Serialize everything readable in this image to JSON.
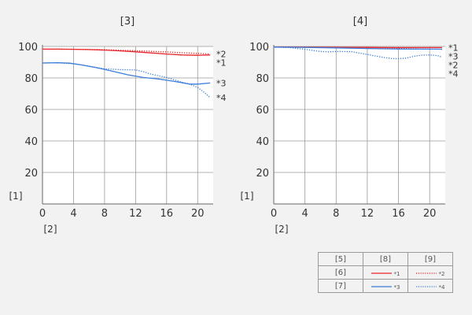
{
  "chart_data": [
    {
      "type": "line",
      "title": "[3]",
      "ylabel": "[1]",
      "xlabel": "[2]",
      "xlim": [
        0,
        22
      ],
      "ylim": [
        0,
        100
      ],
      "xticks": [
        0,
        4,
        8,
        12,
        16,
        20
      ],
      "yticks": [
        20,
        40,
        60,
        80,
        100
      ],
      "grid": true,
      "series": [
        {
          "name": "*1",
          "color": "#e8262b",
          "style": "solid",
          "x": [
            0,
            2,
            4,
            6,
            8,
            10,
            12,
            14,
            16,
            18,
            20,
            21.6
          ],
          "y": [
            98.3,
            98.3,
            98.2,
            98.0,
            97.7,
            97.2,
            96.6,
            95.9,
            95.2,
            94.6,
            94.4,
            94.6
          ]
        },
        {
          "name": "*2",
          "color": "#e8262b",
          "style": "dotted",
          "x": [
            0,
            2,
            4,
            6,
            8,
            10,
            12,
            14,
            16,
            18,
            20,
            21.6
          ],
          "y": [
            98.3,
            98.3,
            98.2,
            98.1,
            97.9,
            97.6,
            97.3,
            96.9,
            96.5,
            96.0,
            95.6,
            95.2
          ]
        },
        {
          "name": "*3",
          "color": "#3b7dd8",
          "style": "solid",
          "x": [
            0,
            2,
            3.5,
            5,
            7,
            9,
            11,
            13,
            15,
            17,
            19,
            20,
            21.6
          ],
          "y": [
            89.5,
            89.7,
            89.4,
            88.3,
            86.5,
            84.3,
            82.0,
            80.3,
            79.3,
            77.8,
            76.1,
            76.1,
            76.8
          ]
        },
        {
          "name": "*4",
          "color": "#3b7dd8",
          "style": "dotted",
          "x": [
            0,
            2,
            4,
            6,
            8,
            10,
            12,
            13,
            14,
            16,
            17,
            18,
            19,
            20,
            21,
            21.6
          ],
          "y": [
            89.5,
            89.6,
            89.0,
            87.5,
            85.8,
            85.3,
            85.1,
            84.0,
            82.4,
            80.3,
            78.8,
            77.3,
            76.0,
            74.0,
            70.2,
            67.5
          ]
        }
      ]
    },
    {
      "type": "line",
      "title": "[4]",
      "ylabel": "[1]",
      "xlabel": "[2]",
      "xlim": [
        0,
        22
      ],
      "ylim": [
        0,
        100
      ],
      "xticks": [
        0,
        4,
        8,
        12,
        16,
        20
      ],
      "yticks": [
        20,
        40,
        60,
        80,
        100
      ],
      "grid": true,
      "series": [
        {
          "name": "*1",
          "color": "#e8262b",
          "style": "solid",
          "x": [
            0,
            4,
            8,
            12,
            16,
            20,
            21.6
          ],
          "y": [
            99.6,
            99.6,
            99.5,
            99.4,
            99.3,
            99.3,
            99.3
          ]
        },
        {
          "name": "*2",
          "color": "#e8262b",
          "style": "dotted",
          "x": [
            0,
            4,
            8,
            12,
            16,
            20,
            21.6
          ],
          "y": [
            99.6,
            99.5,
            99.3,
            99.0,
            98.7,
            98.4,
            98.2
          ]
        },
        {
          "name": "*3",
          "color": "#3b7dd8",
          "style": "solid",
          "x": [
            0,
            4,
            8,
            12,
            16,
            20,
            21.6
          ],
          "y": [
            99.6,
            99.4,
            99.1,
            98.7,
            98.4,
            98.3,
            98.3
          ]
        },
        {
          "name": "*4",
          "color": "#3b7dd8",
          "style": "dotted",
          "x": [
            0,
            2,
            4,
            6,
            7,
            8,
            10,
            12,
            14,
            15,
            16,
            17,
            18,
            19,
            20,
            21,
            21.6
          ],
          "y": [
            99.6,
            99.3,
            98.2,
            96.8,
            96.6,
            96.8,
            96.7,
            94.9,
            93.1,
            92.4,
            92.2,
            92.6,
            93.8,
            94.5,
            94.6,
            94.2,
            93.2
          ]
        }
      ]
    }
  ],
  "legend": {
    "header": [
      "[5]",
      "[8]",
      "[9]"
    ],
    "rows": [
      {
        "label": "[6]",
        "solid": "*1",
        "dotted": "*2",
        "color": "#e8262b"
      },
      {
        "label": "[7]",
        "solid": "*3",
        "dotted": "*4",
        "color": "#3b7dd8"
      }
    ]
  }
}
